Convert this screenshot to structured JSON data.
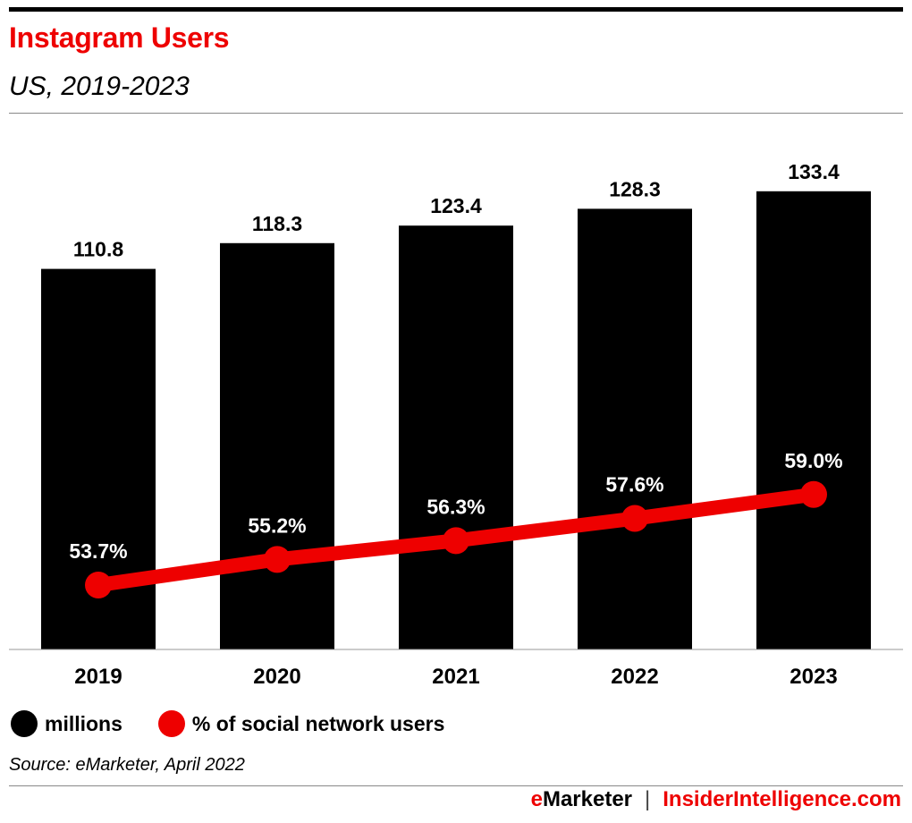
{
  "header": {
    "title": "Instagram Users",
    "subtitle": "US, 2019-2023"
  },
  "legend": {
    "bars_label": "millions",
    "line_label": "% of social network users"
  },
  "source": "Source: eMarketer, April 2022",
  "footer": {
    "brand_e": "e",
    "brand_rest": "Marketer",
    "separator": "|",
    "site": "InsiderIntelligence.com"
  },
  "colors": {
    "bars": "#000000",
    "line": "#ee0000",
    "title": "#ee0000"
  },
  "chart_data": {
    "type": "bar",
    "categories": [
      "2019",
      "2020",
      "2021",
      "2022",
      "2023"
    ],
    "series": [
      {
        "name": "millions",
        "type": "bar",
        "values": [
          110.8,
          118.3,
          123.4,
          128.3,
          133.4
        ],
        "labels": [
          "110.8",
          "118.3",
          "123.4",
          "128.3",
          "133.4"
        ]
      },
      {
        "name": "% of social network users",
        "type": "line",
        "values": [
          53.7,
          55.2,
          56.3,
          57.6,
          59.0
        ],
        "labels": [
          "53.7%",
          "55.2%",
          "56.3%",
          "57.6%",
          "59.0%"
        ]
      }
    ],
    "title": "Instagram Users",
    "subtitle": "US, 2019-2023",
    "xlabel": "",
    "ylabel": "",
    "grid": false,
    "legend_position": "bottom-left"
  }
}
